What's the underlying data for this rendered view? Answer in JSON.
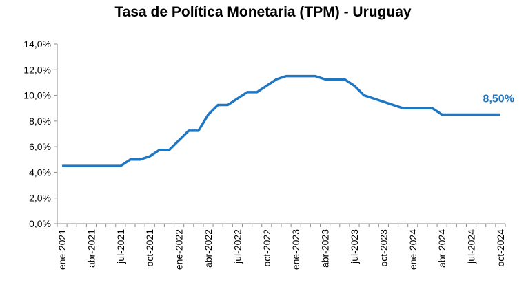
{
  "chart_data": {
    "type": "line",
    "title": "Tasa de Política Monetaria (TPM) - Uruguay",
    "xlabel": "",
    "ylabel": "",
    "ylim": [
      0,
      14
    ],
    "y_ticks": [
      "0,0%",
      "2,0%",
      "4,0%",
      "6,0%",
      "8,0%",
      "10,0%",
      "12,0%",
      "14,0%"
    ],
    "x_tick_labels": [
      "ene-2021",
      "abr-2021",
      "jul-2021",
      "oct-2021",
      "ene-2022",
      "abr-2022",
      "jul-2022",
      "oct-2022",
      "ene-2023",
      "abr-2023",
      "jul-2023",
      "oct-2023",
      "ene-2024",
      "abr-2024",
      "jul-2024",
      "oct-2024"
    ],
    "grid": false,
    "line_color": "#1F77C2",
    "x": [
      "ene-2021",
      "feb-2021",
      "mar-2021",
      "abr-2021",
      "may-2021",
      "jun-2021",
      "jul-2021",
      "ago-2021",
      "sep-2021",
      "oct-2021",
      "nov-2021",
      "dic-2021",
      "ene-2022",
      "feb-2022",
      "mar-2022",
      "abr-2022",
      "may-2022",
      "jun-2022",
      "jul-2022",
      "ago-2022",
      "sep-2022",
      "oct-2022",
      "nov-2022",
      "dic-2022",
      "ene-2023",
      "feb-2023",
      "mar-2023",
      "abr-2023",
      "may-2023",
      "jun-2023",
      "jul-2023",
      "ago-2023",
      "sep-2023",
      "oct-2023",
      "nov-2023",
      "dic-2023",
      "ene-2024",
      "feb-2024",
      "mar-2024",
      "abr-2024",
      "may-2024",
      "jun-2024",
      "jul-2024",
      "ago-2024",
      "sep-2024",
      "oct-2024"
    ],
    "series": [
      {
        "values": [
          4.5,
          4.5,
          4.5,
          4.5,
          4.5,
          4.5,
          4.5,
          5.0,
          5.0,
          5.25,
          5.75,
          5.75,
          6.5,
          7.25,
          7.25,
          8.5,
          9.25,
          9.25,
          9.75,
          10.25,
          10.25,
          10.75,
          11.25,
          11.5,
          11.5,
          11.5,
          11.5,
          11.25,
          11.25,
          11.25,
          10.75,
          10.0,
          9.75,
          9.5,
          9.25,
          9.0,
          9.0,
          9.0,
          9.0,
          8.5,
          8.5,
          8.5,
          8.5,
          8.5,
          8.5,
          8.5
        ]
      }
    ],
    "annotation": {
      "text": "8,50%",
      "color": "#1F77C2"
    }
  }
}
